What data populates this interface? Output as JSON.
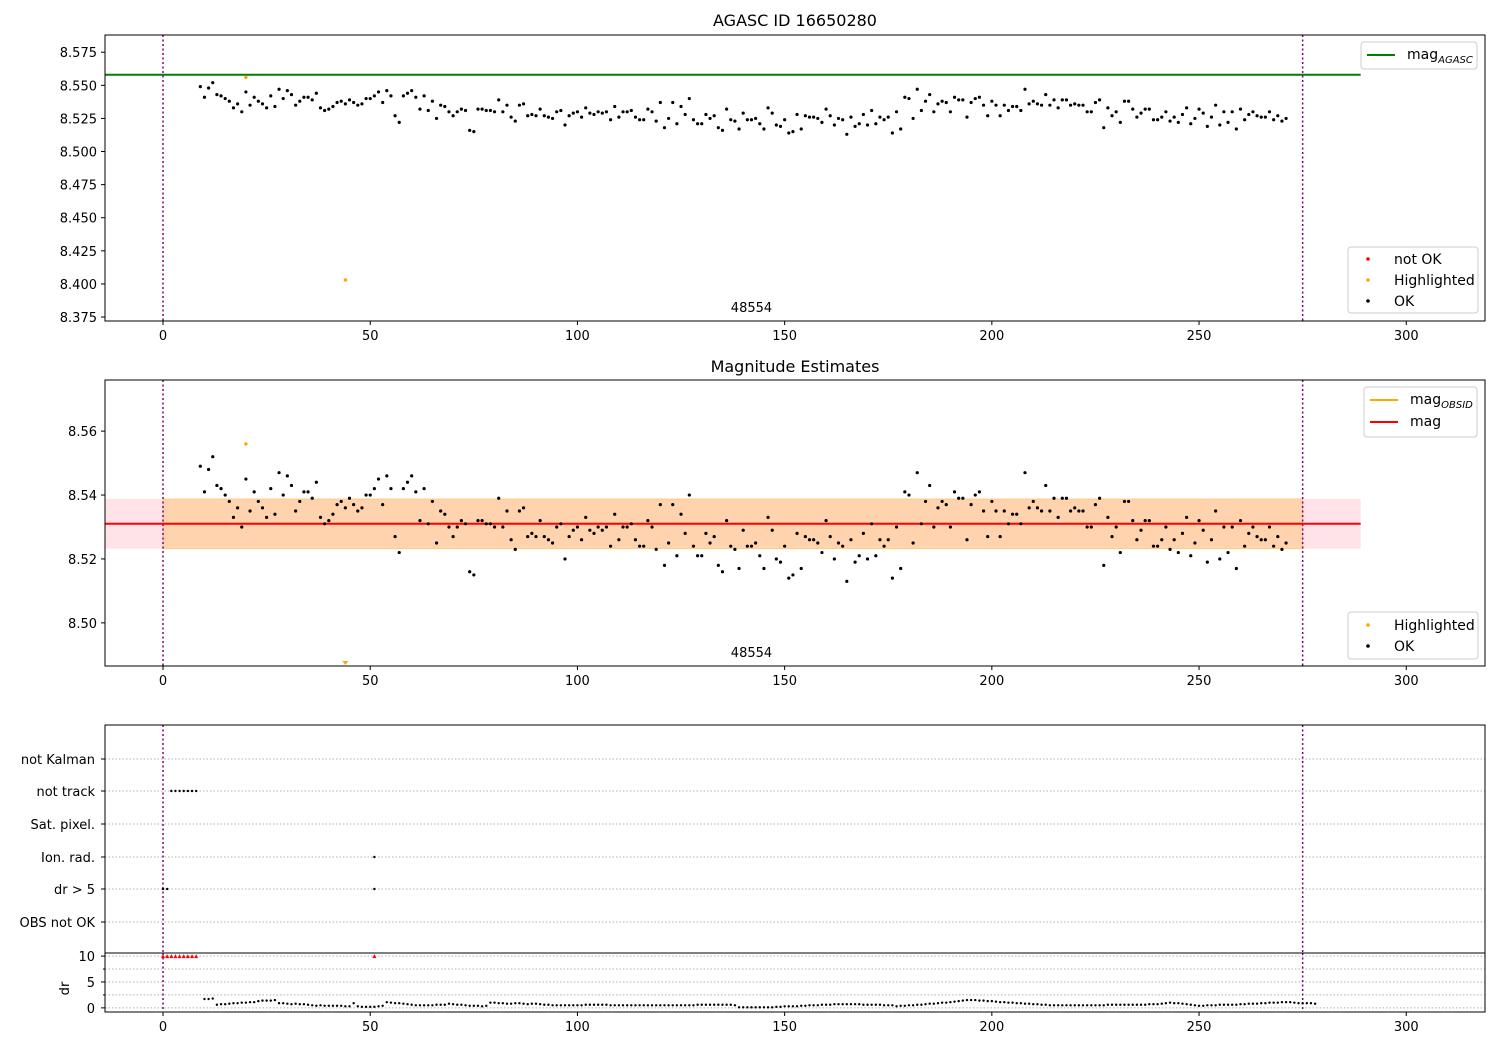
{
  "chart_data": [
    {
      "type": "scatter",
      "title": "AGASC ID 16650280",
      "annotation": "48554",
      "xlim": [
        -14,
        319
      ],
      "ylim": [
        8.372,
        8.588
      ],
      "xticks": [
        0,
        50,
        100,
        150,
        200,
        250,
        300
      ],
      "yticks": [
        8.375,
        8.4,
        8.425,
        8.45,
        8.475,
        8.5,
        8.525,
        8.55,
        8.575
      ],
      "ytick_labels": [
        "8.375",
        "8.400",
        "8.425",
        "8.450",
        "8.475",
        "8.500",
        "8.525",
        "8.550",
        "8.575"
      ],
      "vlines": [
        0,
        275
      ],
      "hline": {
        "name_main": "mag",
        "name_sub": "AGASC",
        "value": 8.558,
        "x_end": 289,
        "color": "#008000"
      },
      "legend_lines": [
        {
          "name_main": "mag",
          "name_sub": "AGASC",
          "color": "#008000"
        }
      ],
      "legend_markers": [
        {
          "name": "not OK",
          "color": "#ff0000"
        },
        {
          "name": "Highlighted",
          "color": "#ffa500"
        },
        {
          "name": "OK",
          "color": "#000000"
        }
      ],
      "highlighted_points": [
        {
          "x": 20,
          "y": 8.556
        },
        {
          "x": 44,
          "y": 8.403
        }
      ],
      "series_x_start": 9,
      "series_x_step": 1,
      "series_y": [
        8.549,
        8.541,
        8.548,
        8.552,
        8.543,
        8.542,
        8.54,
        8.538,
        8.533,
        8.536,
        8.53,
        8.545,
        8.535,
        8.541,
        8.538,
        8.536,
        8.533,
        8.542,
        8.534,
        8.547,
        8.54,
        8.546,
        8.543,
        8.535,
        8.538,
        8.541,
        8.541,
        8.539,
        8.544,
        8.533,
        8.531,
        8.532,
        8.534,
        8.537,
        8.538,
        8.536,
        8.539,
        8.537,
        8.535,
        8.536,
        8.54,
        8.54,
        8.542,
        8.545,
        8.537,
        8.546,
        8.542,
        8.527,
        8.522,
        8.542,
        8.544,
        8.546,
        8.541,
        8.532,
        8.542,
        8.531,
        8.538,
        8.525,
        8.535,
        8.534,
        8.53,
        8.527,
        8.53,
        8.532,
        8.531,
        8.516,
        8.515,
        8.532,
        8.532,
        8.531,
        8.531,
        8.53,
        8.539,
        8.53,
        8.535,
        8.526,
        8.523,
        8.535,
        8.536,
        8.527,
        8.528,
        8.527,
        8.532,
        8.527,
        8.526,
        8.525,
        8.53,
        8.531,
        8.52,
        8.527,
        8.529,
        8.53,
        8.526,
        8.533,
        8.529,
        8.528,
        8.53,
        8.529,
        8.53,
        8.524,
        8.534,
        8.526,
        8.53,
        8.53,
        8.531,
        8.526,
        8.524,
        8.524,
        8.532,
        8.53,
        8.523,
        8.537,
        8.518,
        8.525,
        8.537,
        8.521,
        8.534,
        8.528,
        8.54,
        8.524,
        8.521,
        8.521,
        8.528,
        8.525,
        8.527,
        8.518,
        8.516,
        8.532,
        8.524,
        8.523,
        8.517,
        8.529,
        8.524,
        8.524,
        8.525,
        8.521,
        8.517,
        8.533,
        8.529,
        8.52,
        8.519,
        8.524,
        8.514,
        8.515,
        8.528,
        8.517,
        8.527,
        8.526,
        8.526,
        8.525,
        8.522,
        8.532,
        8.527,
        8.52,
        8.525,
        8.524,
        8.513,
        8.526,
        8.519,
        8.521,
        8.528,
        8.52,
        8.531,
        8.521,
        8.526,
        8.524,
        8.526,
        8.514,
        8.53,
        8.517,
        8.541,
        8.54,
        8.525,
        8.547,
        8.531,
        8.538,
        8.543,
        8.53,
        8.536,
        8.538,
        8.537,
        8.53,
        8.541,
        8.539,
        8.539,
        8.526,
        8.537,
        8.54,
        8.541,
        8.535,
        8.527,
        8.538,
        8.535,
        8.527,
        8.535,
        8.531,
        8.534,
        8.534,
        8.531,
        8.547,
        8.536,
        8.538,
        8.536,
        8.535,
        8.543,
        8.535,
        8.539,
        8.533,
        8.539,
        8.539,
        8.535,
        8.536,
        8.535,
        8.535,
        8.53,
        8.53,
        8.537,
        8.539,
        8.518,
        8.533,
        8.527,
        8.53,
        8.522,
        8.538,
        8.538,
        8.532,
        8.526,
        8.529,
        8.532,
        8.532,
        8.524,
        8.524,
        8.526,
        8.53,
        8.523,
        8.526,
        8.522,
        8.528,
        8.533,
        8.521,
        8.525,
        8.532,
        8.529,
        8.519,
        8.526,
        8.535,
        8.52,
        8.53,
        8.522,
        8.53,
        8.517,
        8.532,
        8.524,
        8.528,
        8.53,
        8.527,
        8.526,
        8.526,
        8.53,
        8.524,
        8.527,
        8.523,
        8.525
      ]
    },
    {
      "type": "scatter",
      "title": "Magnitude Estimates",
      "annotation": "48554",
      "xlim": [
        -14,
        319
      ],
      "ylim": [
        8.4865,
        8.576
      ],
      "xticks": [
        0,
        50,
        100,
        150,
        200,
        250,
        300
      ],
      "yticks": [
        8.5,
        8.52,
        8.54,
        8.56
      ],
      "ytick_labels": [
        "8.50",
        "8.52",
        "8.54",
        "8.56"
      ],
      "vlines": [
        0,
        275
      ],
      "mag": {
        "value": 8.531,
        "x_end": 289,
        "color": "#ff0000"
      },
      "band_outer": {
        "lo": 8.5232,
        "hi": 8.5388,
        "color": "#ffc0cb"
      },
      "band_inner": {
        "lo": 8.5232,
        "hi": 8.5388,
        "x_end": 275,
        "color": "#ffa500"
      },
      "legend_lines": [
        {
          "name_main": "mag",
          "name_sub": "OBSID",
          "color": "#ffa500"
        },
        {
          "name_main": "mag",
          "name_sub": "",
          "color": "#ff0000"
        }
      ],
      "legend_markers": [
        {
          "name": "Highlighted",
          "color": "#ffa500"
        },
        {
          "name": "OK",
          "color": "#000000"
        }
      ],
      "highlighted_points": [
        {
          "x": 20,
          "y": 8.556
        }
      ],
      "offscale_marker": {
        "x": 44,
        "color": "#ffa500"
      }
    },
    {
      "type": "scatter",
      "categories": [
        "not Kalman",
        "not track",
        "Sat. pixel.",
        "Ion. rad.",
        "dr > 5",
        "OBS not OK"
      ],
      "xlim": [
        -14,
        319
      ],
      "xticks": [
        0,
        50,
        100,
        150,
        200,
        250,
        300
      ],
      "vlines": [
        0,
        275
      ],
      "flag_points": {
        "not track": [
          2,
          3,
          4,
          5,
          6,
          7,
          8
        ],
        "Ion. rad.": [
          51
        ],
        "dr > 5": [
          0,
          1,
          51
        ]
      },
      "dr": {
        "ylabel": "dr",
        "yticks": [
          0,
          5,
          10
        ],
        "ylim": [
          -0.8,
          10.6
        ],
        "clipped_at": 10,
        "clipped_x": [
          0,
          1,
          2,
          3,
          4,
          5,
          6,
          7,
          8,
          51
        ],
        "values_x_start": 10,
        "values": [
          1.7,
          1.7,
          1.8,
          0.6,
          0.7,
          0.7,
          0.8,
          0.9,
          0.9,
          1.0,
          1.0,
          1.1,
          1.1,
          1.3,
          1.4,
          1.4,
          1.4,
          1.5,
          0.9,
          0.9,
          0.8,
          0.7,
          0.8,
          0.7,
          0.7,
          0.6,
          0.5,
          0.4,
          0.5,
          0.4,
          0.4,
          0.4,
          0.4,
          0.4,
          0.3,
          0.3,
          0.9,
          0.3,
          0.2,
          0.2,
          0.2,
          0.2,
          0.3,
          0.4,
          1.1,
          1.0,
          0.9,
          0.9,
          0.8,
          0.7,
          0.6,
          0.5,
          0.5,
          0.5,
          0.5,
          0.5,
          0.6,
          0.6,
          0.6,
          0.8,
          0.7,
          0.6,
          0.6,
          0.5,
          0.4,
          0.4,
          0.4,
          0.3,
          0.4,
          1.0,
          1.0,
          0.9,
          0.9,
          0.8,
          0.8,
          0.9,
          0.9,
          0.8,
          0.7,
          0.8,
          0.8,
          0.7,
          0.6,
          0.6,
          0.5,
          0.5,
          0.5,
          0.5,
          0.5,
          0.5,
          0.5,
          0.5,
          0.6,
          0.6,
          0.6,
          0.6,
          0.6,
          0.6,
          0.5,
          0.5,
          0.5,
          0.5,
          0.5,
          0.5,
          0.5,
          0.5,
          0.5,
          0.5,
          0.5,
          0.5,
          0.5,
          0.5,
          0.5,
          0.5,
          0.5,
          0.5,
          0.5,
          0.5,
          0.5,
          0.6,
          0.6,
          0.6,
          0.6,
          0.6,
          0.6,
          0.6,
          0.6,
          0.6,
          0.5,
          0.1,
          0.1,
          0.1,
          0.1,
          0.1,
          0.1,
          0.1,
          0.1,
          0.1,
          0.2,
          0.2,
          0.3,
          0.3,
          0.3,
          0.3,
          0.4,
          0.4,
          0.5,
          0.5,
          0.5,
          0.6,
          0.6,
          0.6,
          0.7,
          0.7,
          0.7,
          0.7,
          0.7,
          0.7,
          0.7,
          0.6,
          0.6,
          0.6,
          0.6,
          0.6,
          0.5,
          0.5,
          0.5,
          0.3,
          0.4,
          0.4,
          0.5,
          0.5,
          0.6,
          0.6,
          0.7,
          0.8,
          0.8,
          0.9,
          1.0,
          1.0,
          1.1,
          1.2,
          1.3,
          1.4,
          1.5,
          1.5,
          1.5,
          1.4,
          1.4,
          1.3,
          1.3,
          1.2,
          1.1,
          1.1,
          1.0,
          1.0,
          0.9,
          0.9,
          0.8,
          0.8,
          0.7,
          0.7,
          0.6,
          0.6,
          0.5,
          0.5,
          0.5,
          0.5,
          0.5,
          0.5,
          0.5,
          0.5,
          0.5,
          0.5,
          0.5,
          0.5,
          0.5,
          0.5,
          0.6,
          0.6,
          0.6,
          0.6,
          0.6,
          0.6,
          0.6,
          0.6,
          0.6,
          0.6,
          0.7,
          0.7,
          0.7,
          0.8,
          0.9,
          1.0,
          0.9,
          0.9,
          0.8,
          0.7,
          0.6,
          0.5,
          0.4,
          0.4,
          0.5,
          0.5,
          0.5,
          0.6,
          0.6,
          0.6,
          0.6,
          0.6,
          0.7,
          0.7,
          0.8,
          0.8,
          0.8,
          0.9,
          0.9,
          1.0,
          1.0,
          1.0,
          1.1,
          1.1,
          1.1,
          1.0,
          0.9,
          0.9,
          0.9,
          0.9,
          0.8
        ]
      }
    }
  ]
}
